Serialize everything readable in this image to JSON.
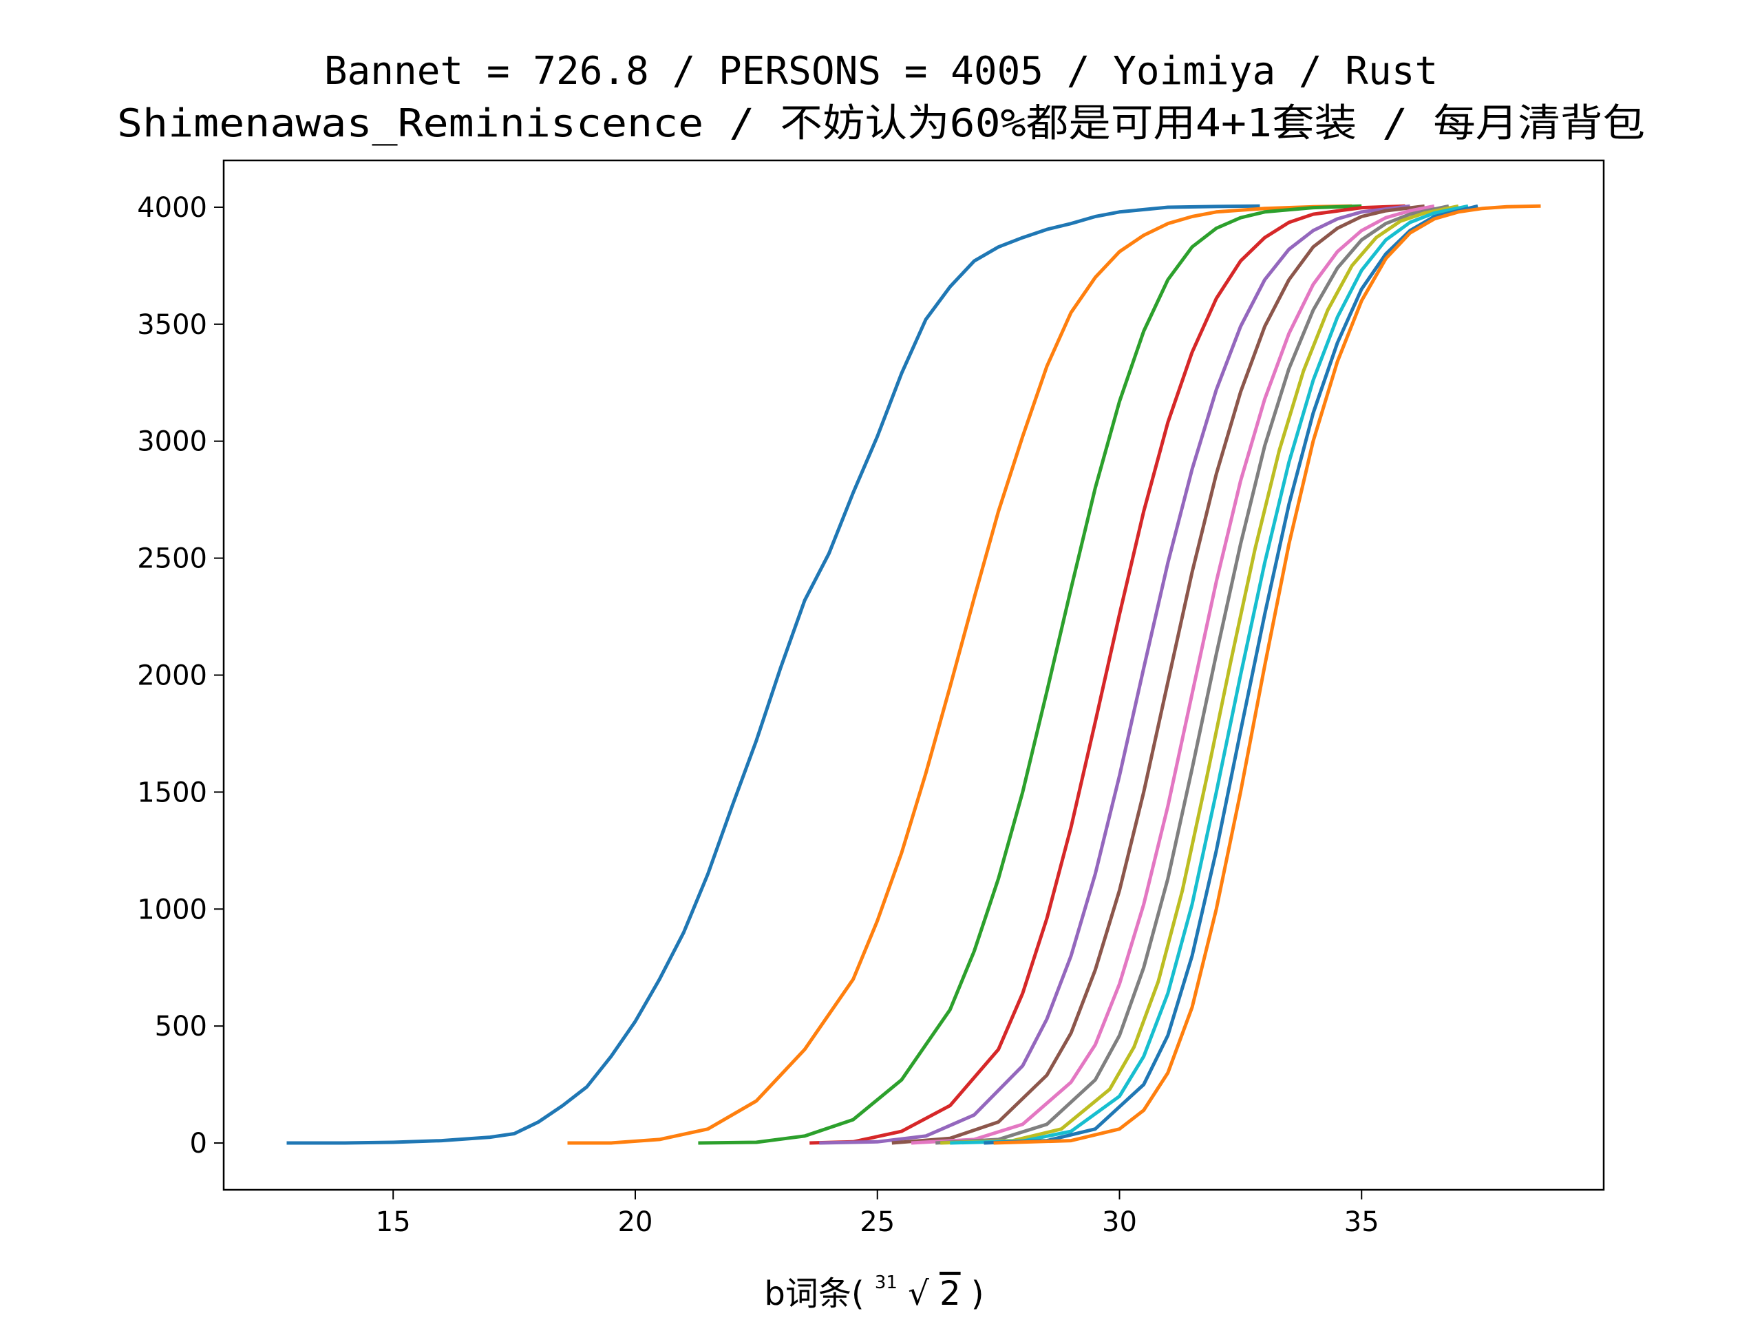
{
  "chart_data": {
    "type": "line",
    "title_line1": "Bannet = 726.8 / PERSONS = 4005 / Yoimiya / Rust",
    "title_line2": "Shimenawas_Reminiscence / 不妨认为60%都是可用4+1套装 / 每月清背包",
    "xlabel_prefix": "b词条(",
    "xlabel_root_index": "31",
    "xlabel_radicand": "2",
    "xlabel_suffix": ")",
    "ylabel": "",
    "xlim": [
      11.5,
      40.0
    ],
    "ylim": [
      -200,
      4200
    ],
    "xticks": [
      15,
      20,
      25,
      30,
      35
    ],
    "yticks": [
      0,
      500,
      1000,
      1500,
      2000,
      2500,
      3000,
      3500,
      4000
    ],
    "grid": false,
    "legend": "none",
    "total": 4005,
    "series": [
      {
        "color": "#1f77b4",
        "x": [
          12.8,
          14,
          15,
          16,
          17,
          17.5,
          18,
          18.5,
          19,
          19.5,
          20,
          20.5,
          21,
          21.5,
          22,
          22.5,
          23,
          23.5,
          24,
          24.5,
          25,
          25.5,
          26,
          26.5,
          27,
          27.5,
          28,
          28.5,
          29,
          29.5,
          30,
          30.5,
          31,
          32,
          32.9
        ],
        "y": [
          0,
          0,
          3,
          10,
          25,
          40,
          90,
          160,
          240,
          370,
          520,
          700,
          900,
          1150,
          1440,
          1720,
          2030,
          2320,
          2520,
          2780,
          3020,
          3290,
          3520,
          3660,
          3770,
          3830,
          3870,
          3905,
          3930,
          3960,
          3980,
          3990,
          4000,
          4003,
          4005
        ]
      },
      {
        "color": "#ff7f0e",
        "x": [
          18.6,
          19.5,
          20.5,
          21.5,
          22.5,
          23.5,
          24.5,
          25,
          25.5,
          26,
          26.5,
          27,
          27.5,
          28,
          28.5,
          29,
          29.5,
          30,
          30.5,
          31,
          31.5,
          32,
          33,
          34,
          34.8
        ],
        "y": [
          0,
          0,
          15,
          60,
          180,
          400,
          700,
          950,
          1240,
          1580,
          1950,
          2330,
          2700,
          3020,
          3320,
          3550,
          3700,
          3810,
          3880,
          3930,
          3960,
          3980,
          3995,
          4002,
          4005
        ]
      },
      {
        "color": "#2ca02c",
        "x": [
          21.3,
          22.5,
          23.5,
          24.5,
          25.5,
          26.5,
          27,
          27.5,
          28,
          28.5,
          29,
          29.5,
          30,
          30.5,
          31,
          31.5,
          32,
          32.5,
          33,
          34,
          35
        ],
        "y": [
          0,
          3,
          30,
          100,
          270,
          570,
          820,
          1130,
          1500,
          1930,
          2370,
          2800,
          3170,
          3470,
          3690,
          3830,
          3910,
          3955,
          3980,
          3998,
          4005
        ]
      },
      {
        "color": "#d62728",
        "x": [
          23.6,
          24.5,
          25.5,
          26.5,
          27.5,
          28,
          28.5,
          29,
          29.5,
          30,
          30.5,
          31,
          31.5,
          32,
          32.5,
          33,
          33.5,
          34,
          35,
          35.9
        ],
        "y": [
          0,
          5,
          50,
          160,
          400,
          640,
          960,
          1350,
          1800,
          2260,
          2700,
          3080,
          3380,
          3610,
          3770,
          3870,
          3935,
          3970,
          3998,
          4005
        ]
      },
      {
        "color": "#9467bd",
        "x": [
          23.8,
          25,
          26,
          27,
          28,
          28.5,
          29,
          29.5,
          30,
          30.5,
          31,
          31.5,
          32,
          32.5,
          33,
          33.5,
          34,
          34.5,
          35,
          36
        ],
        "y": [
          0,
          5,
          30,
          120,
          330,
          530,
          800,
          1150,
          1570,
          2030,
          2480,
          2880,
          3220,
          3490,
          3690,
          3820,
          3900,
          3950,
          3980,
          4005
        ]
      },
      {
        "color": "#8c564b",
        "x": [
          25.3,
          26.5,
          27.5,
          28.5,
          29,
          29.5,
          30,
          30.5,
          31,
          31.5,
          32,
          32.5,
          33,
          33.5,
          34,
          34.5,
          35,
          35.5,
          36.3
        ],
        "y": [
          0,
          20,
          90,
          290,
          470,
          740,
          1080,
          1500,
          1970,
          2440,
          2860,
          3210,
          3490,
          3690,
          3830,
          3910,
          3960,
          3985,
          4005
        ]
      },
      {
        "color": "#e377c2",
        "x": [
          25.7,
          27,
          28,
          29,
          29.5,
          30,
          30.5,
          31,
          31.5,
          32,
          32.5,
          33,
          33.5,
          34,
          34.5,
          35,
          35.5,
          36,
          36.5
        ],
        "y": [
          0,
          15,
          80,
          260,
          420,
          680,
          1020,
          1440,
          1920,
          2400,
          2830,
          3180,
          3460,
          3670,
          3810,
          3900,
          3955,
          3985,
          4005
        ]
      },
      {
        "color": "#7f7f7f",
        "x": [
          26.2,
          27.5,
          28.5,
          29.5,
          30,
          30.5,
          31,
          31.5,
          32,
          32.5,
          33,
          33.5,
          34,
          34.5,
          35,
          35.5,
          36,
          36.8
        ],
        "y": [
          0,
          15,
          80,
          270,
          460,
          750,
          1130,
          1600,
          2090,
          2560,
          2980,
          3310,
          3560,
          3740,
          3860,
          3930,
          3970,
          4005
        ]
      },
      {
        "color": "#bcbd22",
        "x": [
          26.3,
          27.8,
          28.8,
          29.8,
          30.3,
          30.8,
          31.3,
          31.8,
          32.3,
          32.8,
          33.3,
          33.8,
          34.3,
          34.8,
          35.3,
          35.8,
          36.3,
          37
        ],
        "y": [
          0,
          10,
          60,
          230,
          410,
          690,
          1080,
          1560,
          2060,
          2540,
          2960,
          3300,
          3560,
          3750,
          3870,
          3940,
          3975,
          4005
        ]
      },
      {
        "color": "#17becf",
        "x": [
          26.5,
          28,
          29,
          30,
          30.5,
          31,
          31.5,
          32,
          32.5,
          33,
          33.5,
          34,
          34.5,
          35,
          35.5,
          36,
          36.5,
          37.2
        ],
        "y": [
          0,
          8,
          50,
          200,
          370,
          640,
          1020,
          1500,
          2000,
          2480,
          2910,
          3260,
          3530,
          3730,
          3860,
          3935,
          3975,
          4005
        ]
      },
      {
        "color": "#1f77b4",
        "x": [
          27.2,
          28.5,
          29.5,
          30.5,
          31,
          31.5,
          32,
          32.5,
          33,
          33.5,
          34,
          34.5,
          35,
          35.5,
          36,
          36.5,
          37.4
        ],
        "y": [
          0,
          10,
          60,
          250,
          460,
          800,
          1250,
          1760,
          2260,
          2730,
          3120,
          3420,
          3650,
          3800,
          3900,
          3960,
          4005
        ]
      },
      {
        "color": "#ff7f0e",
        "x": [
          27.4,
          29,
          30,
          30.5,
          31,
          31.5,
          32,
          32.5,
          33,
          33.5,
          34,
          34.5,
          35,
          35.5,
          36,
          36.5,
          37,
          37.5,
          38,
          38.7
        ],
        "y": [
          0,
          10,
          60,
          140,
          300,
          580,
          1000,
          1500,
          2040,
          2560,
          3000,
          3340,
          3600,
          3780,
          3890,
          3950,
          3980,
          3995,
          4002,
          4005
        ]
      }
    ]
  }
}
